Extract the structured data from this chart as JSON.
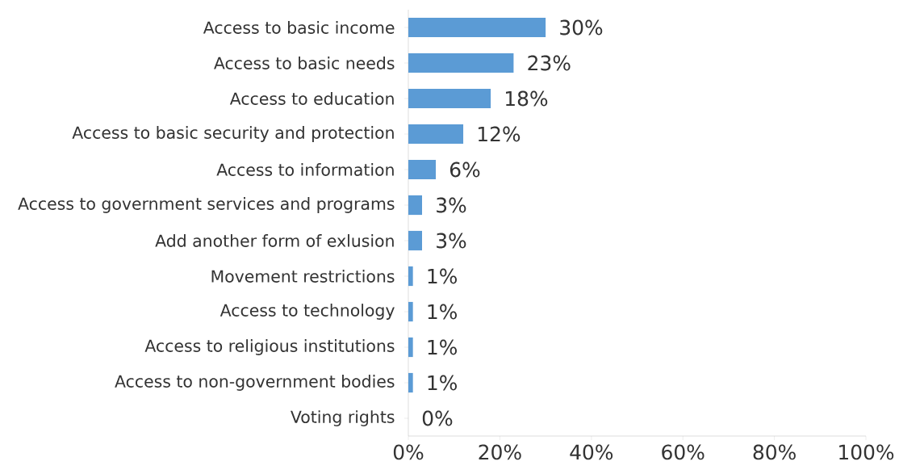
{
  "chart_data": {
    "type": "bar",
    "orientation": "horizontal",
    "categories": [
      "Access to basic income",
      "Access to basic needs",
      "Access to education",
      "Access to basic security and protection",
      "Access to information",
      "Access to government services and programs",
      "Add another form of exlusion",
      "Movement restrictions",
      "Access to technology",
      "Access to religious institutions",
      "Access to non-government bodies",
      "Voting rights"
    ],
    "values": [
      30,
      23,
      18,
      12,
      6,
      3,
      3,
      1,
      1,
      1,
      1,
      0
    ],
    "value_labels": [
      "30%",
      "23%",
      "18%",
      "12%",
      "6%",
      "3%",
      "3%",
      "1%",
      "1%",
      "1%",
      "1%",
      "0%"
    ],
    "color": "#5b9bd5",
    "xlim": [
      0,
      100
    ],
    "xticks": [
      {
        "value": 0,
        "label": "0%"
      },
      {
        "value": 20,
        "label": "20%"
      },
      {
        "value": 40,
        "label": "40%"
      },
      {
        "value": 60,
        "label": "60%"
      },
      {
        "value": 80,
        "label": "80%"
      },
      {
        "value": 100,
        "label": "100%"
      }
    ],
    "grid": false
  }
}
